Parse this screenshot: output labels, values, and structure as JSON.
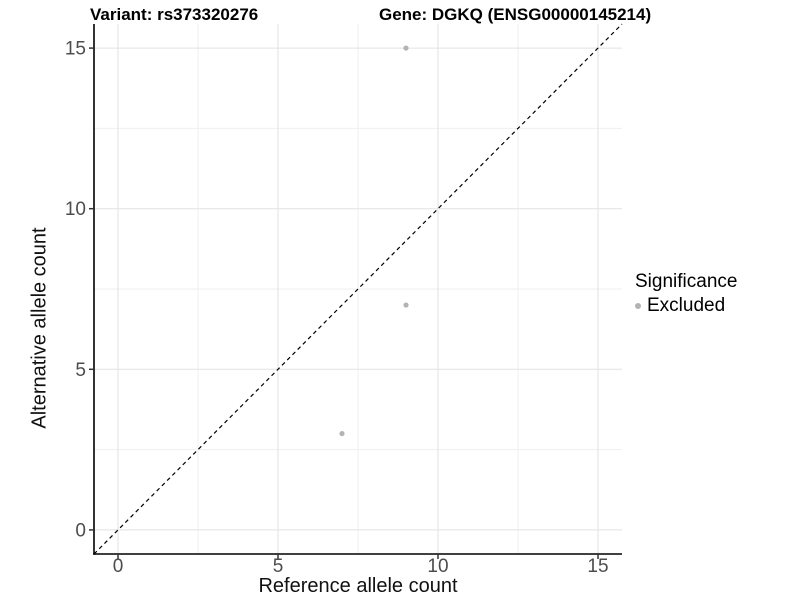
{
  "title": {
    "variant": "Variant: rs373320276",
    "gene": "Gene: DGKQ (ENSG00000145214)"
  },
  "legend": {
    "title": "Significance",
    "entries": [
      {
        "label": "Excluded",
        "color": "#b3b3b3"
      }
    ]
  },
  "colors": {
    "background": "#ffffff",
    "grid_major": "#e2e2e2",
    "grid_minor": "#efefef",
    "axis_line": "#000000",
    "tick_mark": "#333333",
    "tick_label": "#4d4d4d",
    "point": "#b3b3b3",
    "reference_line": "#000000"
  },
  "chart_data": {
    "type": "scatter",
    "title": "Variant: rs373320276    Gene: DGKQ (ENSG00000145214)",
    "xlabel": "Reference allele count",
    "ylabel": "Alternative allele count",
    "xlim": [
      -0.75,
      15.75
    ],
    "ylim": [
      -0.75,
      15.75
    ],
    "x_ticks": [
      0,
      5,
      10,
      15
    ],
    "y_ticks": [
      0,
      5,
      10,
      15
    ],
    "x_minor_ticks": [
      2.5,
      7.5,
      12.5
    ],
    "y_minor_ticks": [
      2.5,
      7.5,
      12.5
    ],
    "grid": true,
    "legend_position": "right",
    "reference_line": {
      "kind": "diagonal-y-equals-x",
      "style": "dashed",
      "color": "#000000"
    },
    "series": [
      {
        "name": "Excluded",
        "color": "#b3b3b3",
        "points": [
          {
            "x": 9,
            "y": 15
          },
          {
            "x": 9,
            "y": 7
          },
          {
            "x": 7,
            "y": 3
          }
        ]
      }
    ]
  }
}
